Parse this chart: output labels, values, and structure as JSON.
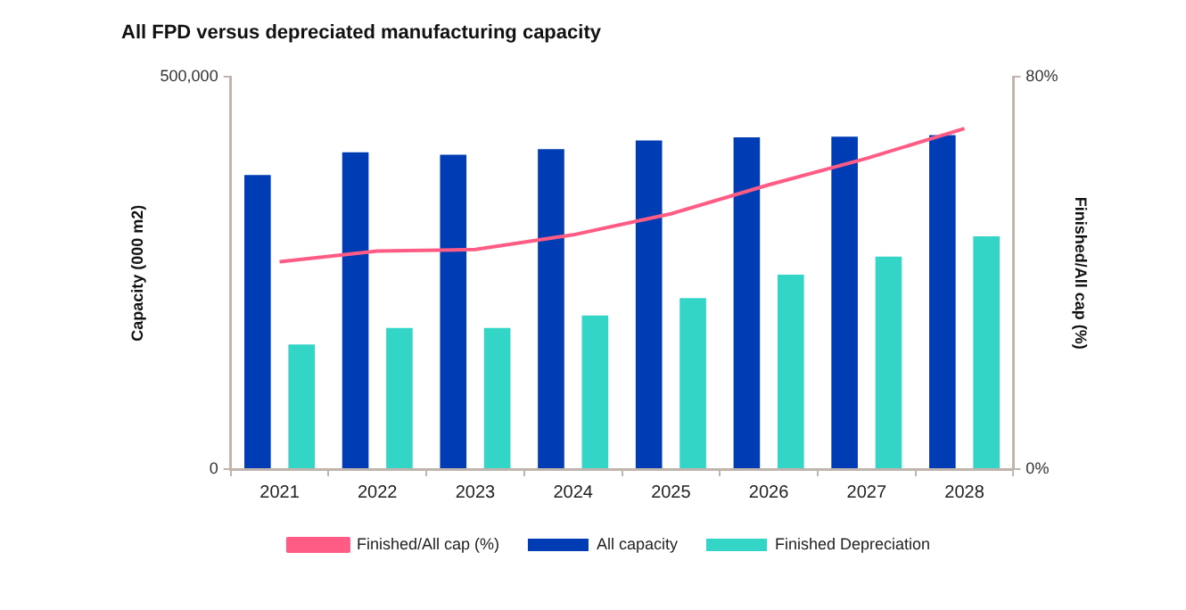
{
  "chart_data": {
    "type": "bar",
    "title": "All FPD versus depreciated manufacturing capacity",
    "categories": [
      "2021",
      "2022",
      "2023",
      "2024",
      "2025",
      "2026",
      "2027",
      "2028"
    ],
    "series": [
      {
        "name": "All capacity",
        "color": "#003cb4",
        "values": [
          375000,
          404000,
          401000,
          408000,
          419000,
          423000,
          424000,
          426000
        ]
      },
      {
        "name": "Finished Depreciation",
        "color": "#33d6c6",
        "values": [
          159000,
          180000,
          180000,
          196000,
          218000,
          248000,
          271000,
          297000
        ]
      },
      {
        "name": "Finished/All cap (%)",
        "type": "line",
        "axis": "y2",
        "color": "#ff5c85",
        "marker": "none",
        "line_style": "solid",
        "values": [
          42.3,
          44.5,
          44.8,
          47.8,
          52.1,
          58.0,
          63.4,
          69.5
        ]
      }
    ],
    "ylabel": "Capacity (000 m2)",
    "y2label": "Finished/All cap (%)",
    "ylim": [
      0,
      500000
    ],
    "yticks": [
      0,
      {
        "value": 500000,
        "label": "500,000"
      }
    ],
    "y2lim": [
      0,
      80
    ],
    "y2ticks": [
      {
        "value": 0,
        "label": "0%"
      },
      {
        "value": 80,
        "label": "80%"
      }
    ],
    "grid": false,
    "legend": "bottom"
  }
}
